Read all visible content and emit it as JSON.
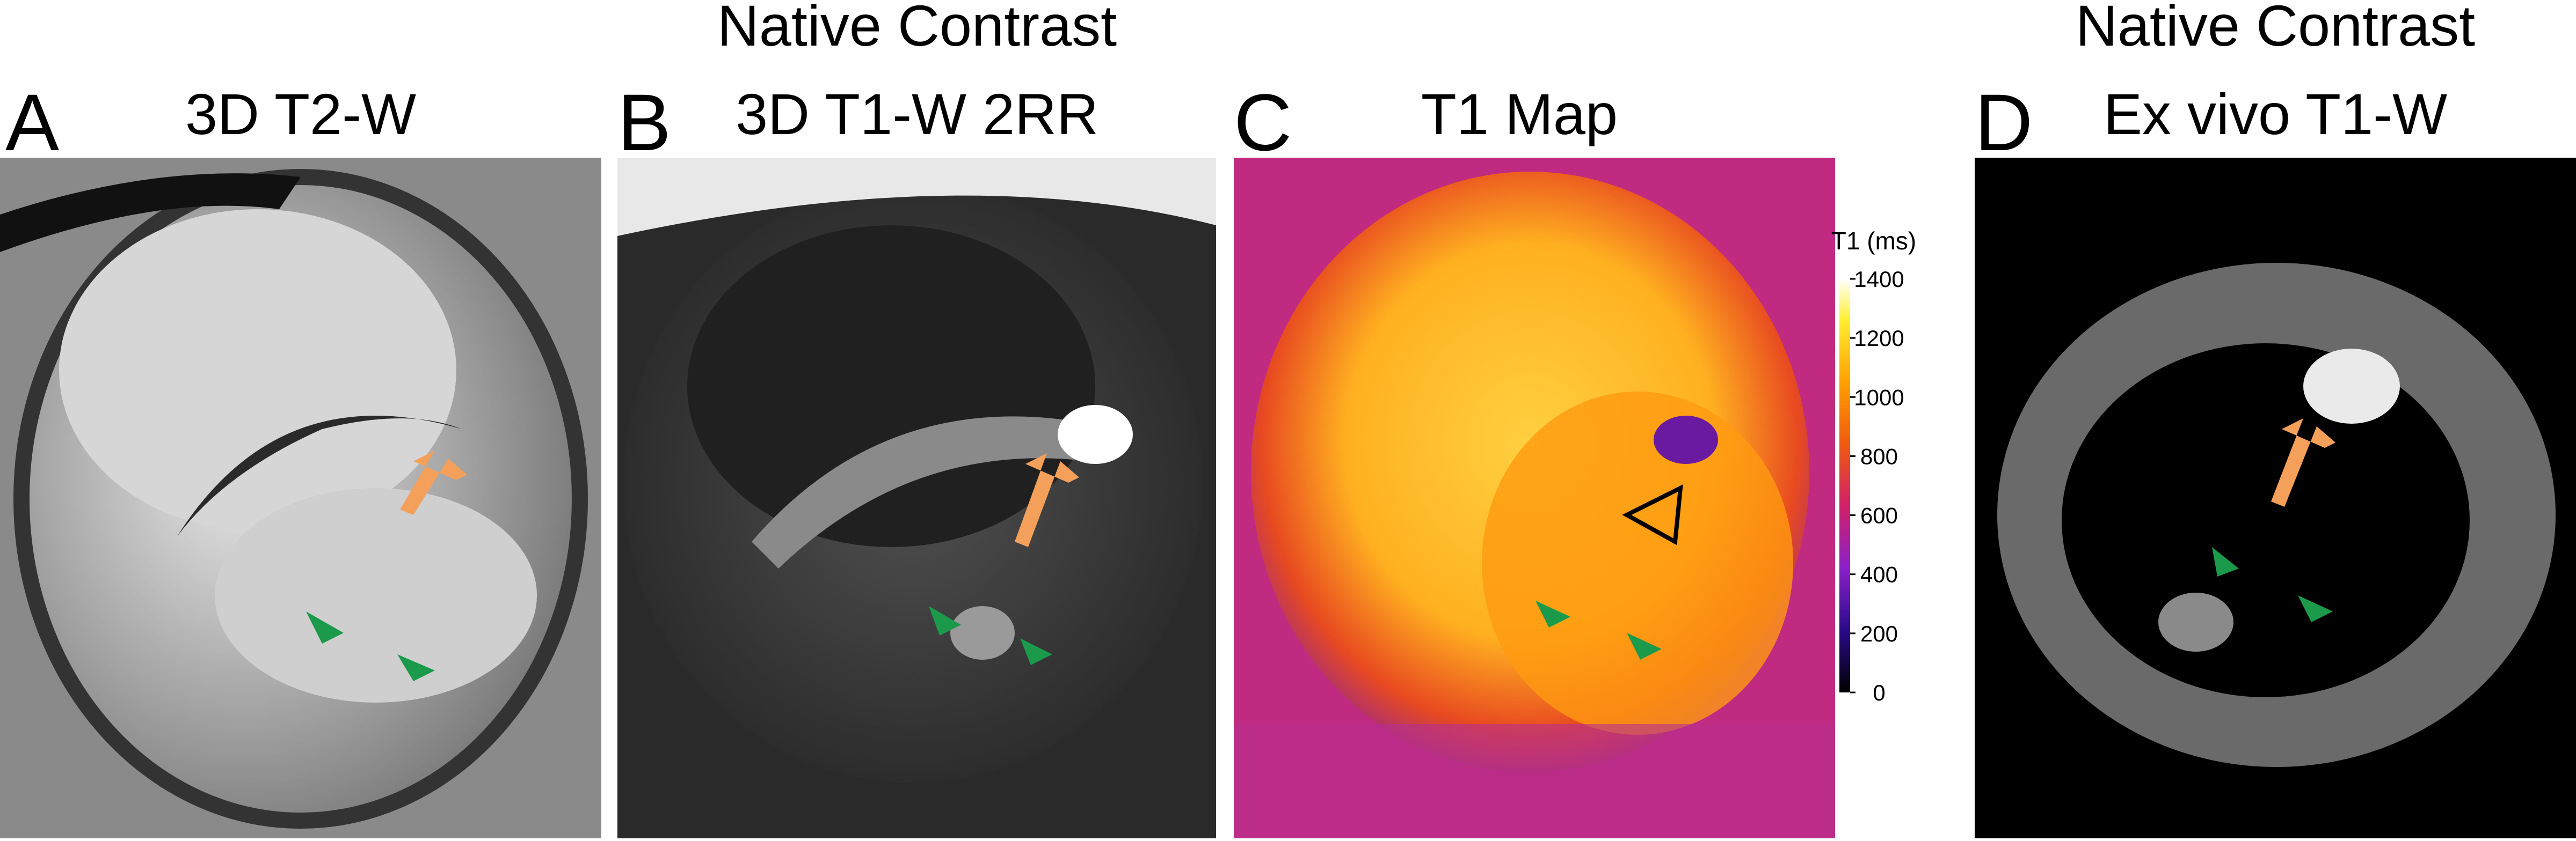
{
  "panels": [
    {
      "letter": "A",
      "title": [
        "3D T2-W"
      ]
    },
    {
      "letter": "B",
      "title": [
        "Native Contrast",
        "3D T1-W 2RR"
      ]
    },
    {
      "letter": "C",
      "title": [
        "T1 Map"
      ]
    },
    {
      "letter": "D",
      "title": [
        "Native Contrast",
        "Ex vivo T1-W"
      ]
    }
  ],
  "colorbar": {
    "label": "T1 (ms)",
    "ticks": [
      0,
      200,
      400,
      600,
      800,
      1000,
      1200,
      1400
    ]
  }
}
